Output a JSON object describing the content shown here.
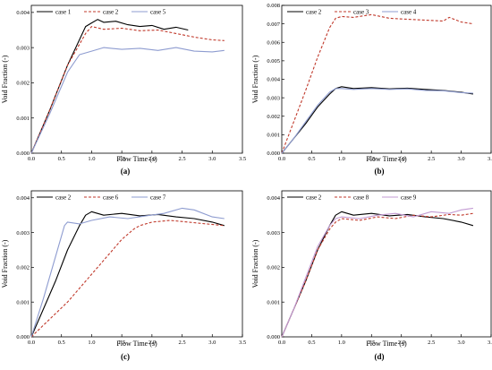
{
  "chart_data": [
    {
      "type": "line",
      "panel_label": "(a)",
      "xlabel": "Flow Time (s)",
      "ylabel": "Void Fraction (-)",
      "xlim": [
        0,
        3.5
      ],
      "ylim": [
        0,
        0.0042
      ],
      "xticks": [
        0.0,
        0.5,
        1.0,
        1.5,
        2.0,
        2.5,
        3.0,
        3.5
      ],
      "xtick_labels": [
        "0.0",
        "0.5",
        "1.0",
        "1.5",
        "2.0",
        "2.5",
        "3.0",
        "3.5"
      ],
      "yticks": [
        0.0,
        0.001,
        0.002,
        0.003,
        0.004
      ],
      "ytick_labels": [
        "0.000",
        "0.001",
        "0.002",
        "0.003",
        "0.004"
      ],
      "legend_position": "top-left",
      "series": [
        {
          "name": "case 1",
          "color": "#000000",
          "dash": "solid",
          "x": [
            0.0,
            0.3,
            0.6,
            0.9,
            1.0,
            1.1,
            1.2,
            1.4,
            1.6,
            1.8,
            2.0,
            2.2,
            2.4,
            2.6
          ],
          "y": [
            0.0,
            0.0012,
            0.0025,
            0.0036,
            0.0037,
            0.0038,
            0.00372,
            0.00375,
            0.00365,
            0.0036,
            0.00363,
            0.00352,
            0.00358,
            0.0035
          ]
        },
        {
          "name": "case 2",
          "color": "#c0392b",
          "dash": "3,2",
          "x": [
            0.0,
            0.3,
            0.6,
            0.9,
            1.0,
            1.2,
            1.5,
            1.8,
            2.1,
            2.4,
            2.7,
            3.0,
            3.2
          ],
          "y": [
            0.0,
            0.0012,
            0.0025,
            0.0034,
            0.0036,
            0.00352,
            0.00355,
            0.00348,
            0.0035,
            0.0034,
            0.0033,
            0.00322,
            0.0032
          ]
        },
        {
          "name": "case 5",
          "color": "#8e9cd0",
          "dash": "solid",
          "x": [
            0.0,
            0.3,
            0.6,
            0.8,
            1.0,
            1.2,
            1.5,
            1.8,
            2.1,
            2.4,
            2.7,
            3.0,
            3.2
          ],
          "y": [
            0.0,
            0.0011,
            0.0023,
            0.0028,
            0.0029,
            0.003,
            0.00295,
            0.00298,
            0.00292,
            0.003,
            0.0029,
            0.00288,
            0.00292
          ]
        }
      ]
    },
    {
      "type": "line",
      "panel_label": "(b)",
      "xlabel": "Flow Time (s)",
      "ylabel": "Void Fraction (-)",
      "xlim": [
        0,
        3.5
      ],
      "ylim": [
        0,
        0.008
      ],
      "xticks": [
        0.0,
        0.5,
        1.0,
        1.5,
        2.0,
        2.5,
        3.0,
        3.5
      ],
      "xtick_labels": [
        "0.0",
        "0.5",
        "1.0",
        "1.5",
        "2.0",
        "2.5",
        "3.0",
        "3.5"
      ],
      "yticks": [
        0.0,
        0.001,
        0.002,
        0.003,
        0.004,
        0.005,
        0.006,
        0.007,
        0.008
      ],
      "ytick_labels": [
        "0.000",
        "0.001",
        "0.002",
        "0.003",
        "0.004",
        "0.005",
        "0.006",
        "0.007",
        "0.008"
      ],
      "legend_position": "top-left",
      "series": [
        {
          "name": "case 2",
          "color": "#000000",
          "dash": "solid",
          "x": [
            0.0,
            0.2,
            0.4,
            0.6,
            0.8,
            0.9,
            1.0,
            1.2,
            1.5,
            1.8,
            2.1,
            2.4,
            2.7,
            3.0,
            3.2
          ],
          "y": [
            0.0,
            0.0008,
            0.0016,
            0.0025,
            0.0032,
            0.0035,
            0.0036,
            0.0035,
            0.00355,
            0.00348,
            0.00352,
            0.00345,
            0.0034,
            0.0033,
            0.0032
          ]
        },
        {
          "name": "case 3",
          "color": "#c0392b",
          "dash": "3,2",
          "x": [
            0.0,
            0.2,
            0.4,
            0.6,
            0.8,
            0.9,
            1.0,
            1.2,
            1.5,
            1.8,
            2.1,
            2.4,
            2.7,
            2.8,
            3.0,
            3.2
          ],
          "y": [
            0.0,
            0.0017,
            0.0034,
            0.0052,
            0.0068,
            0.0073,
            0.0074,
            0.00735,
            0.0075,
            0.0073,
            0.00725,
            0.0072,
            0.00715,
            0.00735,
            0.0071,
            0.007
          ]
        },
        {
          "name": "case 4",
          "color": "#8e9cd0",
          "dash": "solid",
          "x": [
            0.0,
            0.2,
            0.4,
            0.6,
            0.8,
            0.9,
            1.0,
            1.2,
            1.5,
            1.8,
            2.1,
            2.4,
            2.7,
            3.0,
            3.2
          ],
          "y": [
            0.0,
            0.0008,
            0.0017,
            0.0026,
            0.0033,
            0.0035,
            0.0035,
            0.00345,
            0.0035,
            0.00345,
            0.00348,
            0.0034,
            0.00338,
            0.00328,
            0.00325
          ]
        }
      ]
    },
    {
      "type": "line",
      "panel_label": "(c)",
      "xlabel": "Flow Time (s)",
      "ylabel": "Void Fraction (-)",
      "xlim": [
        0,
        3.5
      ],
      "ylim": [
        0,
        0.0042
      ],
      "xticks": [
        0.0,
        0.5,
        1.0,
        1.5,
        2.0,
        2.5,
        3.0,
        3.5
      ],
      "xtick_labels": [
        "0.0",
        "0.5",
        "1.0",
        "1.5",
        "2.0",
        "2.5",
        "3.0",
        "3.5"
      ],
      "yticks": [
        0.0,
        0.001,
        0.002,
        0.003,
        0.004
      ],
      "ytick_labels": [
        "0.000",
        "0.001",
        "0.002",
        "0.003",
        "0.004"
      ],
      "legend_position": "top-left",
      "series": [
        {
          "name": "case 2",
          "color": "#000000",
          "dash": "solid",
          "x": [
            0.0,
            0.2,
            0.4,
            0.6,
            0.8,
            0.9,
            1.0,
            1.2,
            1.5,
            1.8,
            2.1,
            2.4,
            2.7,
            3.0,
            3.2
          ],
          "y": [
            0.0,
            0.0008,
            0.0016,
            0.0025,
            0.0032,
            0.0035,
            0.0036,
            0.0035,
            0.00355,
            0.00348,
            0.00352,
            0.00345,
            0.0034,
            0.0033,
            0.0032
          ]
        },
        {
          "name": "case 6",
          "color": "#c0392b",
          "dash": "3,2",
          "x": [
            0.0,
            0.3,
            0.6,
            0.9,
            1.2,
            1.5,
            1.7,
            1.8,
            2.0,
            2.3,
            2.6,
            2.9,
            3.2
          ],
          "y": [
            0.0,
            0.0005,
            0.001,
            0.0016,
            0.0022,
            0.0028,
            0.0031,
            0.0032,
            0.0033,
            0.00335,
            0.0033,
            0.00325,
            0.0032
          ]
        },
        {
          "name": "case 7",
          "color": "#8e9cd0",
          "dash": "solid",
          "x": [
            0.0,
            0.2,
            0.4,
            0.55,
            0.6,
            0.8,
            1.0,
            1.3,
            1.6,
            1.9,
            2.2,
            2.5,
            2.7,
            3.0,
            3.2
          ],
          "y": [
            0.0,
            0.0011,
            0.0023,
            0.0032,
            0.0033,
            0.00325,
            0.00335,
            0.00345,
            0.0034,
            0.00348,
            0.00355,
            0.0037,
            0.00365,
            0.00345,
            0.0034
          ]
        }
      ]
    },
    {
      "type": "line",
      "panel_label": "(d)",
      "xlabel": "Flow Time (s)",
      "ylabel": "Void Fraction (-)",
      "xlim": [
        0,
        3.5
      ],
      "ylim": [
        0,
        0.0042
      ],
      "xticks": [
        0.0,
        0.5,
        1.0,
        1.5,
        2.0,
        2.5,
        3.0,
        3.5
      ],
      "xtick_labels": [
        "0.0",
        "0.5",
        "1.0",
        "1.5",
        "2.0",
        "2.5",
        "3.0",
        "3.5"
      ],
      "yticks": [
        0.0,
        0.001,
        0.002,
        0.003,
        0.004
      ],
      "ytick_labels": [
        "0.000",
        "0.001",
        "0.002",
        "0.003",
        "0.004"
      ],
      "legend_position": "top-left",
      "series": [
        {
          "name": "case 2",
          "color": "#000000",
          "dash": "solid",
          "x": [
            0.0,
            0.2,
            0.4,
            0.6,
            0.8,
            0.9,
            1.0,
            1.2,
            1.5,
            1.8,
            2.1,
            2.4,
            2.7,
            3.0,
            3.2
          ],
          "y": [
            0.0,
            0.0008,
            0.0016,
            0.0025,
            0.0032,
            0.0035,
            0.0036,
            0.0035,
            0.00355,
            0.00348,
            0.00352,
            0.00345,
            0.0034,
            0.0033,
            0.0032
          ]
        },
        {
          "name": "case 8",
          "color": "#c0392b",
          "dash": "3,2",
          "x": [
            0.0,
            0.2,
            0.4,
            0.6,
            0.8,
            0.9,
            1.0,
            1.3,
            1.6,
            1.9,
            2.2,
            2.5,
            2.8,
            3.0,
            3.2
          ],
          "y": [
            0.0,
            0.0008,
            0.0016,
            0.0025,
            0.0031,
            0.0033,
            0.0034,
            0.00335,
            0.00345,
            0.0034,
            0.0035,
            0.00345,
            0.00352,
            0.0035,
            0.00355
          ]
        },
        {
          "name": "case 9",
          "color": "#c39bd3",
          "dash": "solid",
          "x": [
            0.0,
            0.2,
            0.4,
            0.6,
            0.8,
            0.9,
            1.0,
            1.3,
            1.6,
            1.9,
            2.2,
            2.5,
            2.8,
            3.0,
            3.2
          ],
          "y": [
            0.0,
            0.0008,
            0.0017,
            0.0026,
            0.0032,
            0.0034,
            0.00345,
            0.0034,
            0.0035,
            0.00355,
            0.00345,
            0.0036,
            0.00355,
            0.00365,
            0.0037
          ]
        }
      ]
    }
  ]
}
